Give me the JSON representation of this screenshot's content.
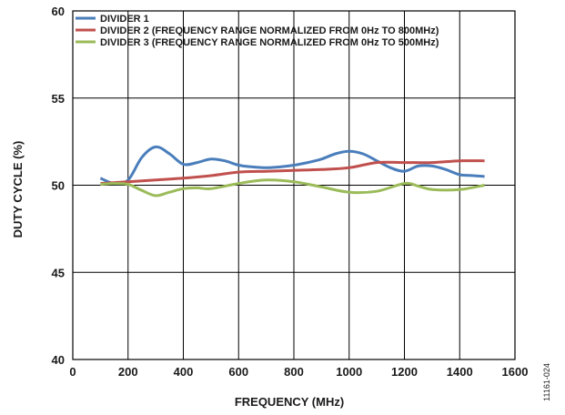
{
  "chart_data": {
    "type": "line",
    "title": "",
    "xlabel": "FREQUENCY (MHz)",
    "ylabel": "DUTY CYCLE (%)",
    "xlim": [
      0,
      1600
    ],
    "ylim": [
      40,
      60
    ],
    "xticks": [
      0,
      200,
      400,
      600,
      800,
      1000,
      1200,
      1400,
      1600
    ],
    "yticks": [
      40,
      45,
      50,
      55,
      60
    ],
    "grid": true,
    "legend_position": "top-left",
    "series": [
      {
        "name": "DIVIDER 1",
        "color": "#4a7ebb",
        "x": [
          100,
          150,
          200,
          250,
          300,
          350,
          400,
          450,
          500,
          550,
          600,
          650,
          700,
          750,
          800,
          850,
          900,
          950,
          1000,
          1050,
          1100,
          1150,
          1200,
          1250,
          1300,
          1350,
          1400,
          1450,
          1490
        ],
        "y": [
          50.4,
          50.1,
          50.3,
          51.6,
          52.2,
          51.8,
          51.2,
          51.3,
          51.5,
          51.4,
          51.15,
          51.05,
          51.0,
          51.05,
          51.15,
          51.3,
          51.5,
          51.8,
          51.95,
          51.8,
          51.4,
          51.0,
          50.8,
          51.1,
          51.1,
          50.9,
          50.6,
          50.55,
          50.5
        ]
      },
      {
        "name": "DIVIDER 2 (FREQUENCY RANGE NORMALIZED FROM 0Hz TO 800MHz)",
        "color": "#c0504d",
        "x": [
          100,
          200,
          300,
          400,
          500,
          600,
          700,
          800,
          900,
          1000,
          1100,
          1200,
          1300,
          1400,
          1490
        ],
        "y": [
          50.1,
          50.2,
          50.3,
          50.4,
          50.55,
          50.75,
          50.8,
          50.85,
          50.9,
          51.0,
          51.3,
          51.3,
          51.3,
          51.4,
          51.4
        ]
      },
      {
        "name": "DIVIDER 3 (FREQUENCY RANGE NORMALIZED FROM 0Hz TO 500MHz)",
        "color": "#9bbb59",
        "x": [
          100,
          150,
          200,
          250,
          300,
          350,
          400,
          450,
          500,
          600,
          700,
          800,
          900,
          1000,
          1100,
          1200,
          1250,
          1300,
          1400,
          1490
        ],
        "y": [
          50.05,
          50.1,
          50.05,
          49.7,
          49.4,
          49.6,
          49.8,
          49.85,
          49.8,
          50.1,
          50.3,
          50.2,
          49.9,
          49.6,
          49.65,
          50.1,
          49.95,
          49.75,
          49.75,
          50.0
        ]
      }
    ]
  },
  "figure_id": "11161-024"
}
